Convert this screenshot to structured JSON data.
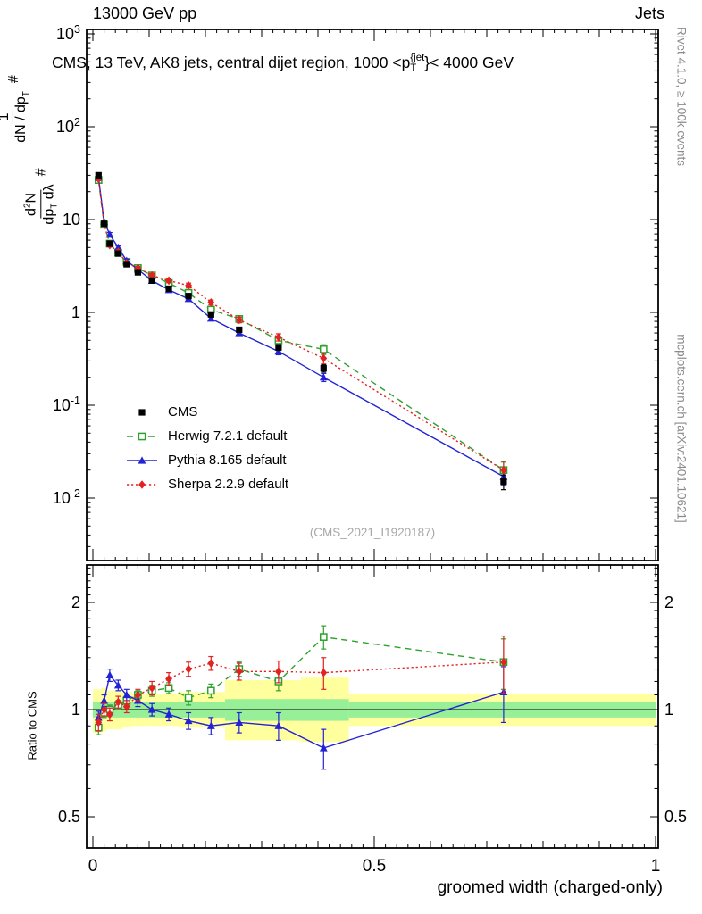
{
  "header": {
    "left": "13000 GeV pp",
    "right": "Jets"
  },
  "title": {
    "t1": "CMS, 13 TeV, AK8 jets, central dijet region, 1000 <",
    "p": "p",
    "sup": "{jet",
    "sub": "T",
    "t2": "}< 4000 GeV"
  },
  "ylabel": {
    "hash1": "#",
    "f1_num": "1",
    "f1_den": "dN / dp",
    "f1_den_sub": "T",
    "hash2": "#",
    "f2_num": "d",
    "f2_num_sup": "2",
    "f2_num_tail": "N",
    "f2_den": "dp",
    "f2_den_sub": "T",
    "f2_den_tail": " dλ"
  },
  "watermark": "(CMS_2021_I1920187)",
  "side_notes": {
    "top": "Rivet 4.1.0, ≥ 100k events",
    "bottom": "mcplots.cern.ch [arXiv:2401.10621]"
  },
  "chart_data": {
    "type": "line",
    "title": "CMS, 13 TeV, AK8 jets, central dijet region, 1000 < pT{jet} < 4000 GeV",
    "xlabel": "groomed width (charged-only)",
    "ylabel": "1/(dN/dpT) d²N/(dpT dλ)",
    "ratio_ylabel": "Ratio to CMS",
    "x": [
      0.01,
      0.02,
      0.03,
      0.045,
      0.06,
      0.08,
      0.105,
      0.135,
      0.17,
      0.21,
      0.26,
      0.33,
      0.41,
      0.73
    ],
    "series": [
      {
        "name": "CMS",
        "color": "#000000",
        "marker": "square-filled",
        "line": "none",
        "values": [
          30,
          9.0,
          5.5,
          4.3,
          3.3,
          2.7,
          2.2,
          1.8,
          1.5,
          0.95,
          0.65,
          0.42,
          0.25,
          0.015
        ],
        "yerr_rel": [
          0.05,
          0.04,
          0.04,
          0.04,
          0.04,
          0.04,
          0.04,
          0.04,
          0.05,
          0.05,
          0.06,
          0.07,
          0.09,
          0.18
        ],
        "ratio": null,
        "ratio_err": null
      },
      {
        "name": "Herwig 7.2.1 default",
        "color": "#2fa12f",
        "marker": "square-open",
        "line": "dashed",
        "values": [
          26.7,
          8.8,
          5.5,
          4.4,
          3.5,
          3.0,
          2.5,
          2.07,
          1.62,
          1.07,
          0.85,
          0.5,
          0.4,
          0.02
        ],
        "yerr_rel": [
          0.04,
          0.03,
          0.03,
          0.03,
          0.03,
          0.03,
          0.04,
          0.04,
          0.05,
          0.05,
          0.06,
          0.07,
          0.12,
          0.22
        ],
        "ratio": [
          0.89,
          0.98,
          1.0,
          1.03,
          1.06,
          1.1,
          1.13,
          1.15,
          1.08,
          1.13,
          1.3,
          1.2,
          1.6,
          1.36
        ],
        "ratio_err": [
          0.04,
          0.03,
          0.03,
          0.03,
          0.03,
          0.03,
          0.04,
          0.04,
          0.05,
          0.05,
          0.06,
          0.07,
          0.12,
          0.22
        ]
      },
      {
        "name": "Pythia 8.165 default",
        "color": "#2323d6",
        "marker": "triangle-filled",
        "line": "solid",
        "values": [
          28.5,
          9.5,
          6.9,
          5.0,
          3.6,
          2.9,
          2.2,
          1.75,
          1.4,
          0.86,
          0.6,
          0.38,
          0.2,
          0.017
        ],
        "yerr_rel": [
          0.04,
          0.04,
          0.05,
          0.04,
          0.04,
          0.04,
          0.04,
          0.04,
          0.05,
          0.05,
          0.06,
          0.08,
          0.1,
          0.2
        ],
        "ratio": [
          0.95,
          1.06,
          1.25,
          1.17,
          1.1,
          1.06,
          1.0,
          0.97,
          0.93,
          0.9,
          0.92,
          0.9,
          0.78,
          1.12
        ],
        "ratio_err": [
          0.04,
          0.04,
          0.05,
          0.04,
          0.04,
          0.04,
          0.04,
          0.04,
          0.05,
          0.05,
          0.06,
          0.08,
          0.1,
          0.2
        ]
      },
      {
        "name": "Sherpa 2.2.9 default",
        "color": "#e32222",
        "marker": "diamond-filled",
        "line": "dotted",
        "values": [
          27.6,
          9.0,
          5.3,
          4.5,
          3.4,
          3.0,
          2.5,
          2.2,
          1.95,
          1.28,
          0.83,
          0.54,
          0.32,
          0.02
        ],
        "yerr_rel": [
          0.05,
          0.04,
          0.04,
          0.04,
          0.04,
          0.04,
          0.05,
          0.05,
          0.06,
          0.06,
          0.07,
          0.09,
          0.13,
          0.25
        ],
        "ratio": [
          0.92,
          1.0,
          0.97,
          1.05,
          1.02,
          1.1,
          1.15,
          1.22,
          1.3,
          1.35,
          1.28,
          1.28,
          1.27,
          1.36
        ],
        "ratio_err": [
          0.05,
          0.04,
          0.04,
          0.04,
          0.04,
          0.04,
          0.05,
          0.05,
          0.06,
          0.06,
          0.07,
          0.09,
          0.13,
          0.25
        ]
      }
    ],
    "bands": {
      "yellow": {
        "color": "#ffff9e",
        "bins": [
          [
            0.0,
            0.015,
            0.86,
            1.14
          ],
          [
            0.015,
            0.025,
            0.87,
            1.15
          ],
          [
            0.025,
            0.0375,
            0.88,
            1.13
          ],
          [
            0.0375,
            0.0525,
            0.88,
            1.13
          ],
          [
            0.0525,
            0.07,
            0.89,
            1.12
          ],
          [
            0.07,
            0.0925,
            0.9,
            1.11
          ],
          [
            0.0925,
            0.12,
            0.9,
            1.11
          ],
          [
            0.12,
            0.1525,
            0.9,
            1.11
          ],
          [
            0.1525,
            0.19,
            0.89,
            1.12
          ],
          [
            0.19,
            0.235,
            0.89,
            1.12
          ],
          [
            0.235,
            0.295,
            0.82,
            1.21
          ],
          [
            0.295,
            0.37,
            0.82,
            1.21
          ],
          [
            0.37,
            0.455,
            0.81,
            1.23
          ],
          [
            0.455,
            1.0,
            0.9,
            1.11
          ]
        ]
      },
      "green": {
        "color": "#97f097",
        "bins": [
          [
            0.0,
            0.235,
            0.95,
            1.05
          ],
          [
            0.235,
            0.455,
            0.93,
            1.07
          ],
          [
            0.455,
            1.0,
            0.95,
            1.05
          ]
        ]
      }
    },
    "axes": {
      "x": {
        "min": -0.012,
        "max": 1.005,
        "ticks": [
          {
            "v": 0,
            "label": "0"
          },
          {
            "v": 0.5,
            "label": "0.5"
          },
          {
            "v": 1,
            "label": "1"
          }
        ]
      },
      "y_main": {
        "scale": "log",
        "min": 0.0021,
        "max": 1120,
        "ticks": [
          {
            "v": 1000,
            "label": "10",
            "exp": "3"
          },
          {
            "v": 100,
            "label": "10",
            "exp": "2"
          },
          {
            "v": 10,
            "label": "10"
          },
          {
            "v": 1,
            "label": "1"
          },
          {
            "v": 0.1,
            "label": "10",
            "exp": "-1"
          },
          {
            "v": 0.01,
            "label": "10",
            "exp": "-2"
          }
        ]
      },
      "y_ratio": {
        "scale": "log",
        "min": 0.41,
        "max": 2.55,
        "ticks": [
          {
            "v": 0.5,
            "label": "0.5"
          },
          {
            "v": 1,
            "label": "1"
          },
          {
            "v": 2,
            "label": "2"
          }
        ]
      }
    }
  }
}
